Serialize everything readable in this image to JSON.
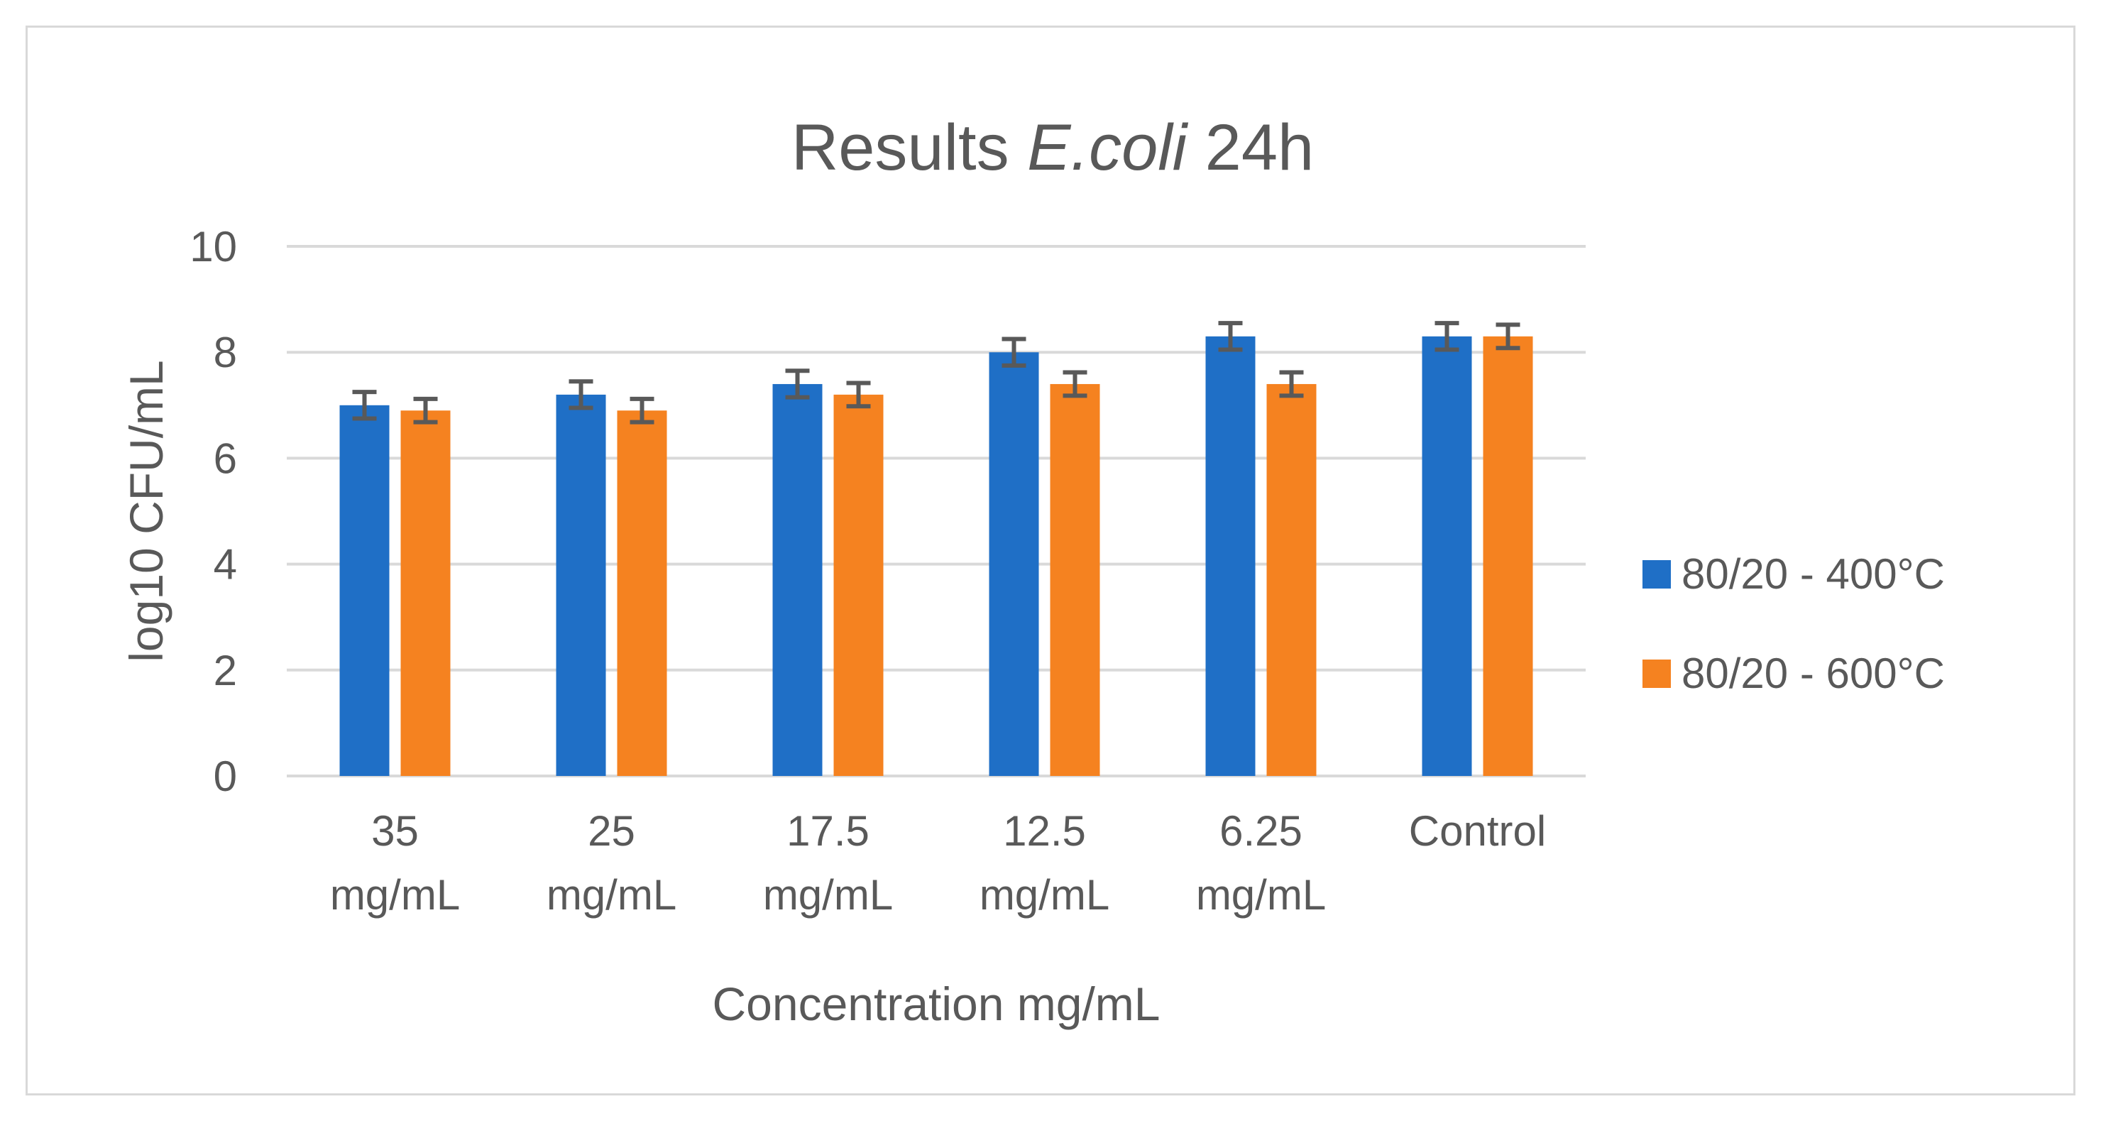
{
  "chart_data": {
    "type": "bar",
    "title": {
      "prefix": "Results ",
      "italic": "E.coli",
      "suffix": " 24h"
    },
    "xlabel": "Concentration mg/mL",
    "ylabel": "log10 CFU/mL",
    "ylim": [
      0,
      10
    ],
    "yticks": [
      0,
      2,
      4,
      6,
      8,
      10
    ],
    "grid": true,
    "legend_position": "right",
    "categories": [
      [
        "35",
        "mg/mL"
      ],
      [
        "25",
        "mg/mL"
      ],
      [
        "17.5",
        "mg/mL"
      ],
      [
        "12.5",
        "mg/mL"
      ],
      [
        "6.25",
        "mg/mL"
      ],
      [
        "Control"
      ]
    ],
    "series": [
      {
        "name": "80/20 - 400°C",
        "color": "#1f6fc6",
        "values": [
          7.0,
          7.2,
          7.4,
          8.0,
          8.3,
          8.3
        ],
        "errors": [
          0.25,
          0.25,
          0.25,
          0.25,
          0.25,
          0.25
        ]
      },
      {
        "name": "80/20 - 600°C",
        "color": "#f58220",
        "values": [
          6.9,
          6.9,
          7.2,
          7.4,
          7.4,
          8.3
        ],
        "errors": [
          0.22,
          0.22,
          0.22,
          0.22,
          0.22,
          0.22
        ]
      }
    ],
    "gridline_color": "#d9d9d9",
    "errorbar_color": "#595959"
  }
}
